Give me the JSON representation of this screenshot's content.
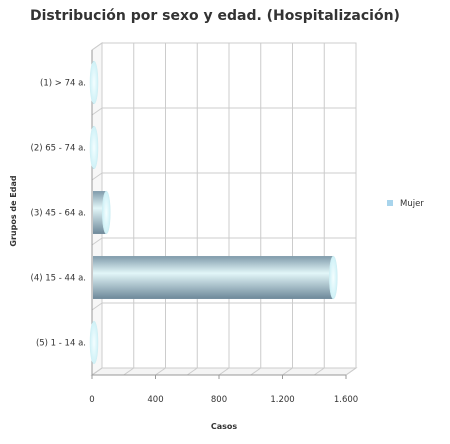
{
  "chart_data": {
    "type": "bar",
    "orientation": "horizontal",
    "title": "Distribución por sexo y edad. (Hospitalización)",
    "xlabel": "Casos",
    "ylabel": "Grupos de Edad",
    "categories": [
      "(1) > 74 a.",
      "(2) 65 - 74 a.",
      "(3) 45 - 64 a.",
      "(4) 15 - 44 a.",
      "(5) 1 - 14 a."
    ],
    "series": [
      {
        "name": "Mujer",
        "values": [
          10,
          10,
          90,
          1520,
          0
        ]
      }
    ],
    "xlim": [
      0,
      1600
    ],
    "xticks": [
      0,
      400,
      800,
      1200,
      1600
    ],
    "xtick_labels": [
      "0",
      "400",
      "800",
      "1.200",
      "1.600"
    ],
    "grid": true,
    "legend_position": "right",
    "colors": {
      "bar_dark": "#7f9aaa",
      "bar_light": "#e2f6f8",
      "bar_cap": "#e8fcff",
      "legend_swatch": "#a8d4ec",
      "grid": "#cccccc"
    }
  }
}
